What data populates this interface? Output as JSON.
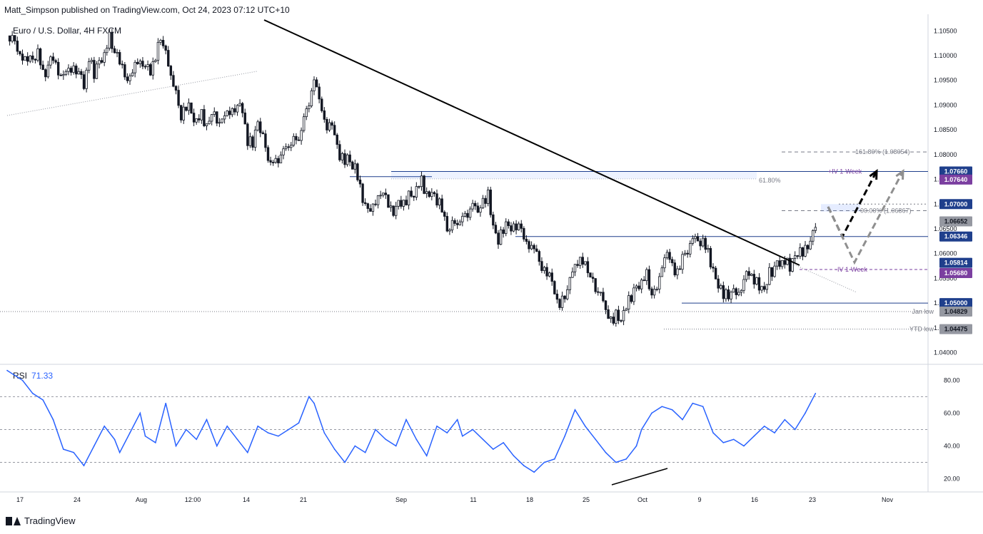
{
  "header": {
    "text": "Matt_Simpson published on TradingView.com, Oct 24, 2023 07:12 UTC+10"
  },
  "symbol": {
    "title": "Euro / U.S. Dollar, 4H FXCM"
  },
  "footer": {
    "brand": "TradingView"
  },
  "colors": {
    "line": "#131722",
    "blue": "#1f3f8c",
    "rsi": "#2962ff",
    "purple": "#7b3fa0",
    "grey": "#787b86"
  },
  "chart_data": [
    {
      "type": "candlestick",
      "title": "Euro / U.S. Dollar, 4H FXCM",
      "ylim": [
        1.0385,
        1.1072
      ],
      "y_ticks": [
        "1.04000",
        "1.04500",
        "1.05000",
        "1.05500",
        "1.06000",
        "1.06500",
        "1.07000",
        "1.07500",
        "1.08000",
        "1.08500",
        "1.09000",
        "1.09500",
        "1.10000",
        "1.10500"
      ],
      "x_ticks": [
        "17",
        "24",
        "Aug",
        "12:00",
        "14",
        "21",
        "Sep",
        "11",
        "18",
        "25",
        "Oct",
        "9",
        "16",
        "23",
        "Nov"
      ],
      "close_path": [
        [
          0,
          1.104
        ],
        [
          2,
          1.102
        ],
        [
          4,
          1.098
        ],
        [
          6,
          1.101
        ],
        [
          7,
          1.096
        ],
        [
          9,
          1.0995
        ],
        [
          11,
          1.095
        ],
        [
          13,
          1.0985
        ],
        [
          15,
          1.094
        ],
        [
          16,
          1.1
        ],
        [
          17,
          1.096
        ],
        [
          19,
          1.101
        ],
        [
          20,
          1.104
        ],
        [
          22,
          1.098
        ],
        [
          24,
          1.095
        ],
        [
          26,
          1.1
        ],
        [
          28,
          1.096
        ],
        [
          29,
          1.1
        ],
        [
          30,
          1.103
        ],
        [
          32,
          1.097
        ],
        [
          33,
          1.093
        ],
        [
          34,
          1.088
        ],
        [
          35,
          1.09
        ],
        [
          37,
          1.087
        ],
        [
          38,
          1.088
        ],
        [
          39,
          1.086
        ],
        [
          40,
          1.089
        ],
        [
          42,
          1.086
        ],
        [
          44,
          1.09
        ],
        [
          46,
          1.089
        ],
        [
          47,
          1.083
        ],
        [
          48,
          1.082
        ],
        [
          49,
          1.086
        ],
        [
          51,
          1.08
        ],
        [
          52,
          1.079
        ],
        [
          54,
          1.08
        ],
        [
          55,
          1.081
        ],
        [
          57,
          1.084
        ],
        [
          58,
          1.088
        ],
        [
          60,
          1.094
        ],
        [
          61,
          1.091
        ],
        [
          62,
          1.086
        ],
        [
          64,
          1.085
        ],
        [
          65,
          1.08
        ],
        [
          66,
          1.079
        ],
        [
          68,
          1.078
        ],
        [
          69,
          1.073
        ],
        [
          70,
          1.07
        ],
        [
          72,
          1.069
        ],
        [
          73,
          1.072
        ],
        [
          74,
          1.071
        ],
        [
          75,
          1.0685
        ],
        [
          77,
          1.07
        ],
        [
          78,
          1.071
        ],
        [
          80,
          1.073
        ],
        [
          81,
          1.0745
        ],
        [
          82,
          1.072
        ],
        [
          83,
          1.073
        ],
        [
          84,
          1.071
        ],
        [
          85,
          1.069
        ],
        [
          86,
          1.064
        ],
        [
          88,
          1.067
        ],
        [
          89,
          1.068
        ],
        [
          91,
          1.069
        ],
        [
          92,
          1.068
        ],
        [
          93,
          1.07
        ],
        [
          94,
          1.072
        ],
        [
          95,
          1.066
        ],
        [
          96,
          1.063
        ],
        [
          97,
          1.065
        ],
        [
          99,
          1.066
        ],
        [
          101,
          1.064
        ],
        [
          103,
          1.06
        ],
        [
          105,
          1.057
        ],
        [
          107,
          1.053
        ],
        [
          108,
          1.05
        ],
        [
          110,
          1.054
        ],
        [
          112,
          1.06
        ],
        [
          113,
          1.058
        ],
        [
          114,
          1.056
        ],
        [
          116,
          1.051
        ],
        [
          117,
          1.048
        ],
        [
          118,
          1.046
        ],
        [
          119,
          1.048
        ],
        [
          120,
          1.047
        ],
        [
          121,
          1.05
        ],
        [
          122,
          1.051
        ],
        [
          124,
          1.055
        ],
        [
          125,
          1.056
        ],
        [
          126,
          1.052
        ],
        [
          128,
          1.056
        ],
        [
          129,
          1.06
        ],
        [
          130,
          1.057
        ],
        [
          131,
          1.056
        ],
        [
          132,
          1.06
        ],
        [
          134,
          1.062
        ],
        [
          136,
          1.063
        ],
        [
          137,
          1.06
        ],
        [
          138,
          1.057
        ],
        [
          139,
          1.054
        ],
        [
          140,
          1.052
        ],
        [
          141,
          1.051
        ],
        [
          143,
          1.053
        ],
        [
          145,
          1.056
        ],
        [
          146,
          1.055
        ],
        [
          147,
          1.053
        ],
        [
          148,
          1.052
        ],
        [
          149,
          1.056
        ],
        [
          151,
          1.058
        ],
        [
          152,
          1.059
        ],
        [
          153,
          1.057
        ],
        [
          154,
          1.059
        ],
        [
          155,
          1.06
        ],
        [
          156,
          1.061
        ],
        [
          157,
          1.063
        ],
        [
          158,
          1.0665
        ]
      ],
      "price_labels": [
        {
          "price": 1.0766,
          "text": "1.07660",
          "style": "blue"
        },
        {
          "price": 1.0764,
          "text": "1.07640",
          "style": "purple"
        },
        {
          "price": 1.07,
          "text": "1.07000",
          "style": "blue"
        },
        {
          "price": 1.06652,
          "text": "1.06652",
          "style": "grey"
        },
        {
          "price": 1.06346,
          "text": "1.06346",
          "style": "blue"
        },
        {
          "price": 1.05814,
          "text": "1.05814",
          "style": "blue"
        },
        {
          "price": 1.0568,
          "text": "1.05680",
          "style": "purple"
        },
        {
          "price": 1.05,
          "text": "1.05000",
          "style": "blue"
        },
        {
          "price": 1.04829,
          "text": "1.04829",
          "style": "grey"
        },
        {
          "price": 1.04475,
          "text": "1.04475",
          "style": "grey"
        }
      ],
      "annotations": [
        {
          "text": "161.80% (1.08054)",
          "price": 1.08054
        },
        {
          "text": "61.80%",
          "price": 1.0751
        },
        {
          "text": "+IV 1-Week",
          "price": 1.0766
        },
        {
          "text": "00.00% (1.06867)",
          "price": 1.06867
        },
        {
          "text": "-IV 1-Week",
          "price": 1.0568
        },
        {
          "text": "Jan low",
          "price": 1.04829
        },
        {
          "text": "YTD low",
          "price": 1.04475
        }
      ]
    },
    {
      "type": "line",
      "name": "RSI",
      "value_label": "71.33",
      "ylim": [
        15,
        88
      ],
      "y_ticks": [
        "20.00",
        "40.00",
        "60.00",
        "80.00"
      ],
      "levels": [
        30,
        50,
        70
      ],
      "values": [
        [
          0,
          86
        ],
        [
          3,
          80
        ],
        [
          5,
          72
        ],
        [
          7,
          68
        ],
        [
          9,
          56
        ],
        [
          11,
          38
        ],
        [
          13,
          36
        ],
        [
          15,
          28
        ],
        [
          17,
          40
        ],
        [
          19,
          52
        ],
        [
          21,
          44
        ],
        [
          22,
          36
        ],
        [
          24,
          48
        ],
        [
          26,
          60
        ],
        [
          27,
          46
        ],
        [
          29,
          42
        ],
        [
          31,
          66
        ],
        [
          33,
          40
        ],
        [
          35,
          50
        ],
        [
          37,
          44
        ],
        [
          39,
          56
        ],
        [
          41,
          40
        ],
        [
          43,
          52
        ],
        [
          45,
          44
        ],
        [
          47,
          36
        ],
        [
          49,
          52
        ],
        [
          51,
          48
        ],
        [
          53,
          46
        ],
        [
          55,
          50
        ],
        [
          57,
          54
        ],
        [
          59,
          70
        ],
        [
          60,
          66
        ],
        [
          62,
          48
        ],
        [
          64,
          38
        ],
        [
          66,
          30
        ],
        [
          68,
          40
        ],
        [
          70,
          36
        ],
        [
          72,
          50
        ],
        [
          74,
          44
        ],
        [
          76,
          40
        ],
        [
          78,
          56
        ],
        [
          80,
          44
        ],
        [
          82,
          34
        ],
        [
          84,
          52
        ],
        [
          86,
          48
        ],
        [
          88,
          56
        ],
        [
          89,
          46
        ],
        [
          91,
          50
        ],
        [
          93,
          44
        ],
        [
          95,
          38
        ],
        [
          97,
          42
        ],
        [
          99,
          34
        ],
        [
          101,
          28
        ],
        [
          103,
          24
        ],
        [
          105,
          30
        ],
        [
          107,
          32
        ],
        [
          109,
          46
        ],
        [
          111,
          62
        ],
        [
          113,
          52
        ],
        [
          115,
          44
        ],
        [
          117,
          36
        ],
        [
          119,
          30
        ],
        [
          121,
          32
        ],
        [
          123,
          40
        ],
        [
          124,
          50
        ],
        [
          126,
          60
        ],
        [
          128,
          64
        ],
        [
          130,
          62
        ],
        [
          132,
          56
        ],
        [
          134,
          66
        ],
        [
          136,
          64
        ],
        [
          138,
          48
        ],
        [
          140,
          42
        ],
        [
          142,
          44
        ],
        [
          144,
          40
        ],
        [
          146,
          46
        ],
        [
          148,
          52
        ],
        [
          150,
          48
        ],
        [
          152,
          56
        ],
        [
          154,
          50
        ],
        [
          156,
          60
        ],
        [
          158,
          72
        ]
      ]
    }
  ]
}
